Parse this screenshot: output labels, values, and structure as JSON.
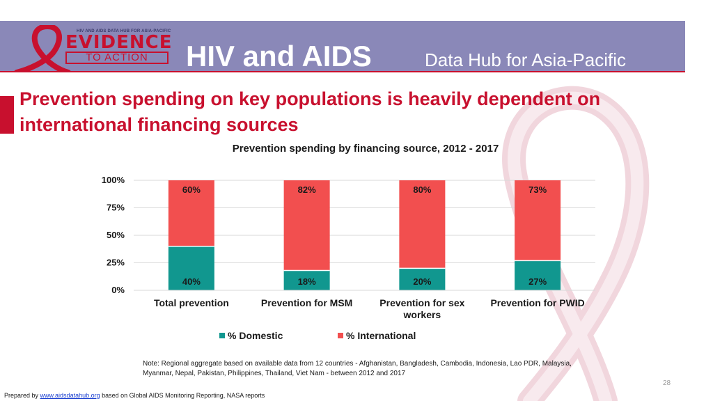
{
  "header": {
    "logo_top": "HIV AND AIDS DATA HUB FOR ASIA-PACIFIC",
    "logo_evidence": "EVIDENCE",
    "logo_action": "TO ACTION",
    "title": "HIV and AIDS",
    "subtitle": "Data Hub for Asia-Pacific"
  },
  "slide": {
    "title": "Prevention spending on key populations is heavily dependent on international financing sources"
  },
  "colors": {
    "header_bg": "#8a88b8",
    "accent": "#c8102e",
    "domestic": "#11978f",
    "international": "#f24f4f"
  },
  "chart_data": {
    "type": "bar",
    "stacked": true,
    "title": "Prevention spending by financing source, 2012 - 2017",
    "categories": [
      "Total prevention",
      "Prevention for MSM",
      "Prevention for sex workers",
      "Prevention for PWID"
    ],
    "series": [
      {
        "name": "% Domestic",
        "values": [
          40,
          18,
          20,
          27
        ],
        "labels": [
          "40%",
          "18%",
          "20%",
          "27%"
        ]
      },
      {
        "name": "% International",
        "values": [
          60,
          82,
          80,
          73
        ],
        "labels": [
          "60%",
          "82%",
          "80%",
          "73%"
        ]
      }
    ],
    "yticks": [
      "0%",
      "25%",
      "50%",
      "75%",
      "100%"
    ],
    "ylim": [
      0,
      100
    ],
    "grid": true,
    "legend": "bottom"
  },
  "note": "Note: Regional aggregate based on available data from 12 countries - Afghanistan, Bangladesh, Cambodia, Indonesia, Lao PDR, Malaysia, Myanmar, Nepal, Pakistan, Philippines, Thailand, Viet Nam - between 2012 and 2017",
  "page_number": "28",
  "footer": {
    "prefix": "Prepared by",
    "link": "www.aidsdatahub.org",
    "suffix": "based on Global AIDS Monitoring Reporting, NASA reports"
  }
}
